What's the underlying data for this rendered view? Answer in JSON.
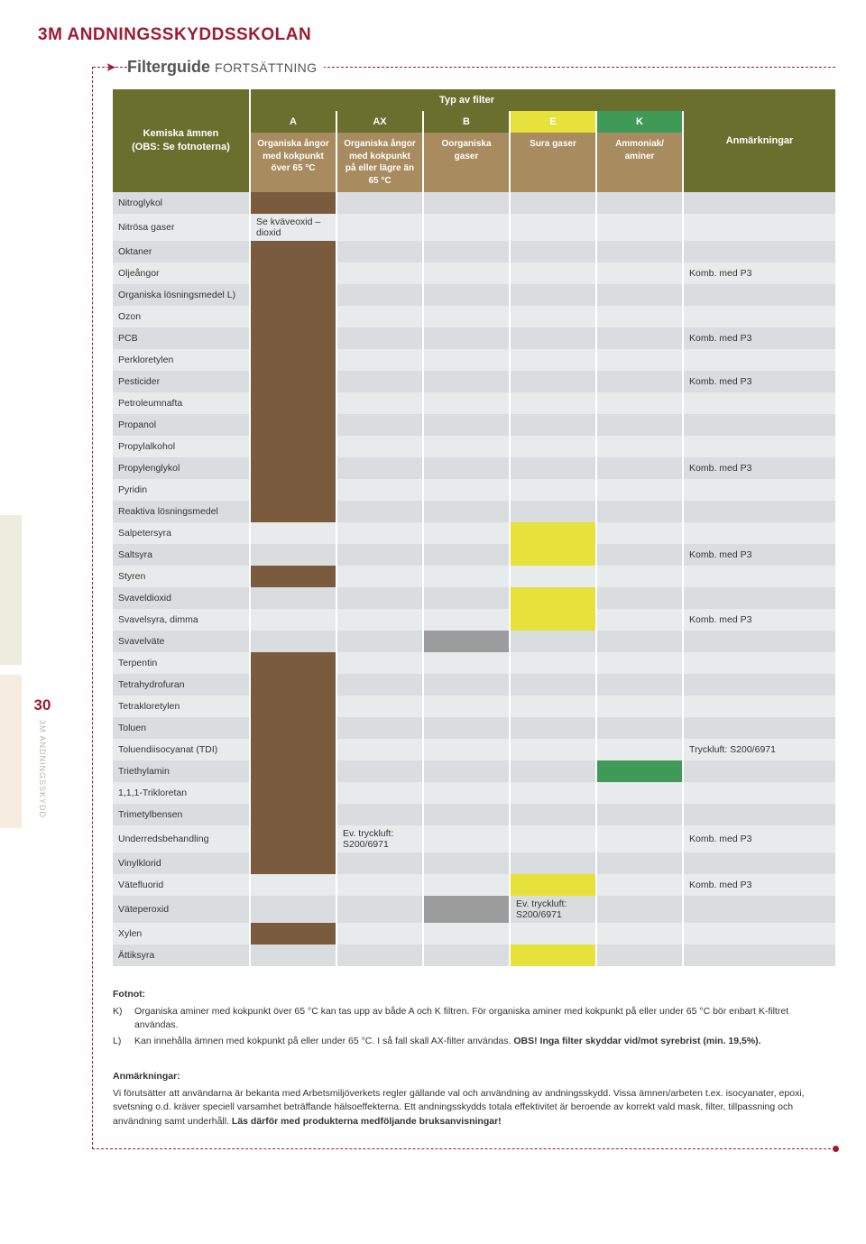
{
  "page": {
    "top_title": "3M ANDNINGSSKYDDSSKOLAN",
    "section_title": "Filterguide",
    "section_title_cont": "FORTSÄTTNING",
    "page_number": "30",
    "side_label": "3M ANDNINGSSKYDD"
  },
  "colors": {
    "olive": "#6a6f2d",
    "tan": "#a88b5e",
    "brown_fill": "#7a5b3e",
    "grey_fill": "#9c9c9c",
    "yellow_fill": "#e6e23b",
    "green_fill": "#3f9a57",
    "row_odd": "#d9dde0",
    "row_even": "#e8ebec",
    "accent_red": "#9f1b32"
  },
  "header": {
    "typ": "Typ av filter",
    "label": "Kemiska ämnen\n(OBS: Se fotnoterna)",
    "cols": {
      "a": {
        "code": "A",
        "desc": "Organiska ångor med kokpunkt över 65 °C"
      },
      "ax": {
        "code": "AX",
        "desc": "Organiska ångor med kokpunkt på eller lägre än 65 °C"
      },
      "b": {
        "code": "B",
        "desc": "Oorganiska gaser"
      },
      "e": {
        "code": "E",
        "desc": "Sura gaser"
      },
      "k": {
        "code": "K",
        "desc": "Ammoniak/ aminer"
      }
    },
    "remark": "Anmärkningar"
  },
  "rows": [
    {
      "label": "Nitroglykol",
      "a": "brown",
      "remark": ""
    },
    {
      "label": "Nitrösa gaser",
      "a_text": "Se kväveoxid – dioxid"
    },
    {
      "label": "Oktaner",
      "a": "brown"
    },
    {
      "label": "Oljeångor",
      "a": "brown",
      "remark": "Komb. med P3"
    },
    {
      "label": "Organiska lösningsmedel L)",
      "a": "brown"
    },
    {
      "label": "Ozon",
      "a": "brown"
    },
    {
      "label": "PCB",
      "a": "brown",
      "remark": "Komb. med P3"
    },
    {
      "label": "Perkloretylen",
      "a": "brown"
    },
    {
      "label": "Pesticider",
      "a": "brown",
      "remark": "Komb. med P3"
    },
    {
      "label": "Petroleumnafta",
      "a": "brown"
    },
    {
      "label": "Propanol",
      "a": "brown"
    },
    {
      "label": "Propylalkohol",
      "a": "brown"
    },
    {
      "label": "Propylenglykol",
      "a": "brown",
      "remark": "Komb. med P3"
    },
    {
      "label": "Pyridin",
      "a": "brown"
    },
    {
      "label": "Reaktiva lösningsmedel",
      "a": "brown"
    },
    {
      "label": "Salpetersyra",
      "e": "yellow"
    },
    {
      "label": "Saltsyra",
      "e": "yellow",
      "remark": "Komb. med P3"
    },
    {
      "label": "Styren",
      "a": "brown"
    },
    {
      "label": "Svaveldioxid",
      "e": "yellow"
    },
    {
      "label": "Svavelsyra, dimma",
      "e": "yellow",
      "remark": "Komb. med P3"
    },
    {
      "label": "Svavelväte",
      "b": "grey"
    },
    {
      "label": "Terpentin",
      "a": "brown"
    },
    {
      "label": "Tetrahydrofuran",
      "a": "brown"
    },
    {
      "label": "Tetrakloretylen",
      "a": "brown"
    },
    {
      "label": "Toluen",
      "a": "brown"
    },
    {
      "label": "Toluendiisocyanat (TDI)",
      "a": "brown",
      "remark": "Tryckluft: S200/6971"
    },
    {
      "label": "Triethylamin",
      "a": "brown",
      "k": "green"
    },
    {
      "label": "1,1,1-Trikloretan",
      "a": "brown"
    },
    {
      "label": "Trimetylbensen",
      "a": "brown"
    },
    {
      "label": "Underredsbehandling",
      "a": "brown",
      "ax_text": "Ev. tryckluft: S200/6971",
      "remark": "Komb. med P3"
    },
    {
      "label": "Vinylklorid",
      "a": "brown"
    },
    {
      "label": "Vätefluorid",
      "e": "yellow",
      "remark": "Komb. med P3"
    },
    {
      "label": "Väteperoxid",
      "b": "grey",
      "e_text": "Ev. tryckluft: S200/6971"
    },
    {
      "label": "Xylen",
      "a": "brown"
    },
    {
      "label": "Ättiksyra",
      "e": "yellow"
    }
  ],
  "footnote": {
    "title": "Fotnot:",
    "items": [
      {
        "key": "K)",
        "text": "Organiska aminer med kokpunkt över 65 °C kan tas upp av både A och K filtren. För organiska aminer med kokpunkt på eller under 65 °C bör enbart K-filtret användas."
      },
      {
        "key": "L)",
        "text_pre": "Kan innehålla ämnen med kokpunkt på eller under 65 °C. I så fall skall AX-filter användas. ",
        "text_bold": "OBS! Inga filter skyddar vid/mot syrebrist (min. 19,5%)."
      }
    ]
  },
  "remarks": {
    "title": "Anmärkningar:",
    "text_pre": "Vi förutsätter att användarna är bekanta med Arbetsmiljöverkets regler gällande val och användning av andningsskydd. Vissa ämnen/arbeten t.ex. isocyanater, epoxi, svetsning o.d. kräver speciell varsamhet beträffande hälsoeffekterna. Ett andningsskydds totala effektivitet är beroende av korrekt vald mask, filter, tillpassning och användning samt underhåll. ",
    "text_bold": "Läs därför med produkterna medföljande bruksanvisningar!"
  }
}
